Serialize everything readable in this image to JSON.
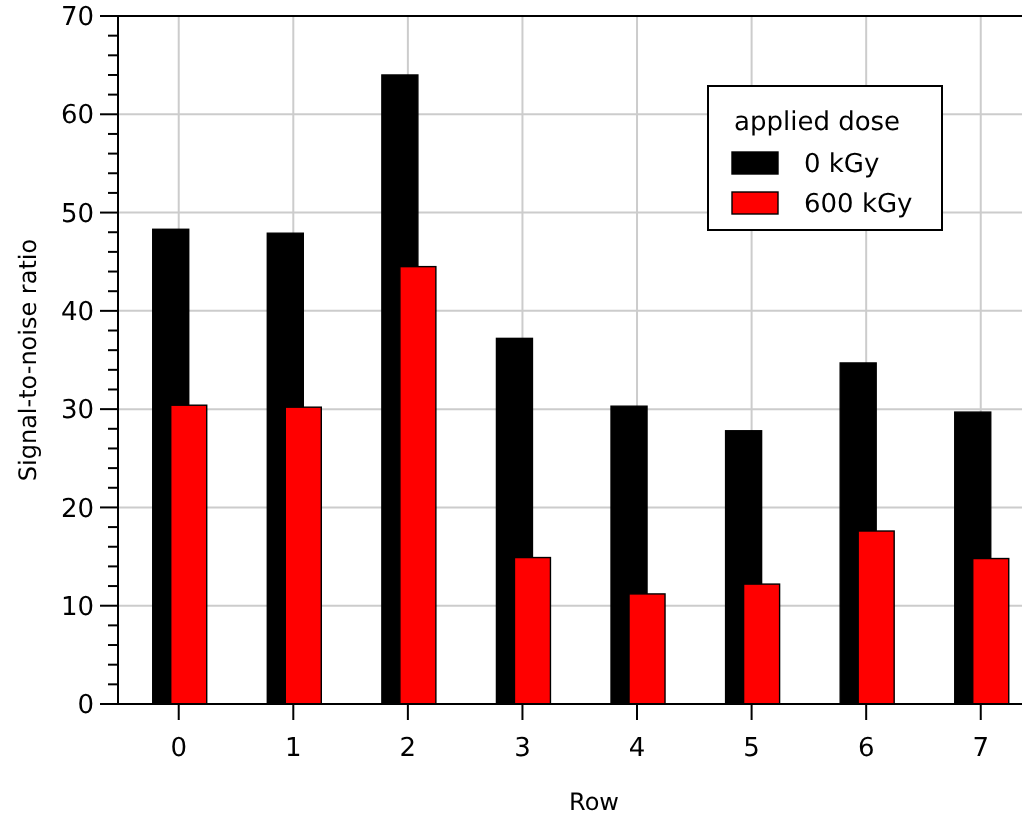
{
  "chart_data": {
    "type": "bar",
    "xlabel": "Row",
    "ylabel": "Signal-to-noise ratio",
    "legend_title": "applied dose",
    "categories": [
      "0",
      "1",
      "2",
      "3",
      "4",
      "5",
      "6",
      "7"
    ],
    "series": [
      {
        "name": "0 kGy",
        "color": "#000000",
        "values": [
          48.3,
          47.9,
          64,
          37.2,
          30.3,
          27.8,
          34.7,
          29.7
        ]
      },
      {
        "name": "600 kGy",
        "color": "#ff0000",
        "values": [
          30.4,
          30.2,
          44.5,
          14.9,
          11.2,
          12.2,
          17.6,
          14.8
        ]
      }
    ],
    "ylim": [
      0,
      70
    ],
    "yticks": [
      0,
      10,
      20,
      30,
      40,
      50,
      60,
      70
    ],
    "grid": true,
    "legend": "top right"
  }
}
